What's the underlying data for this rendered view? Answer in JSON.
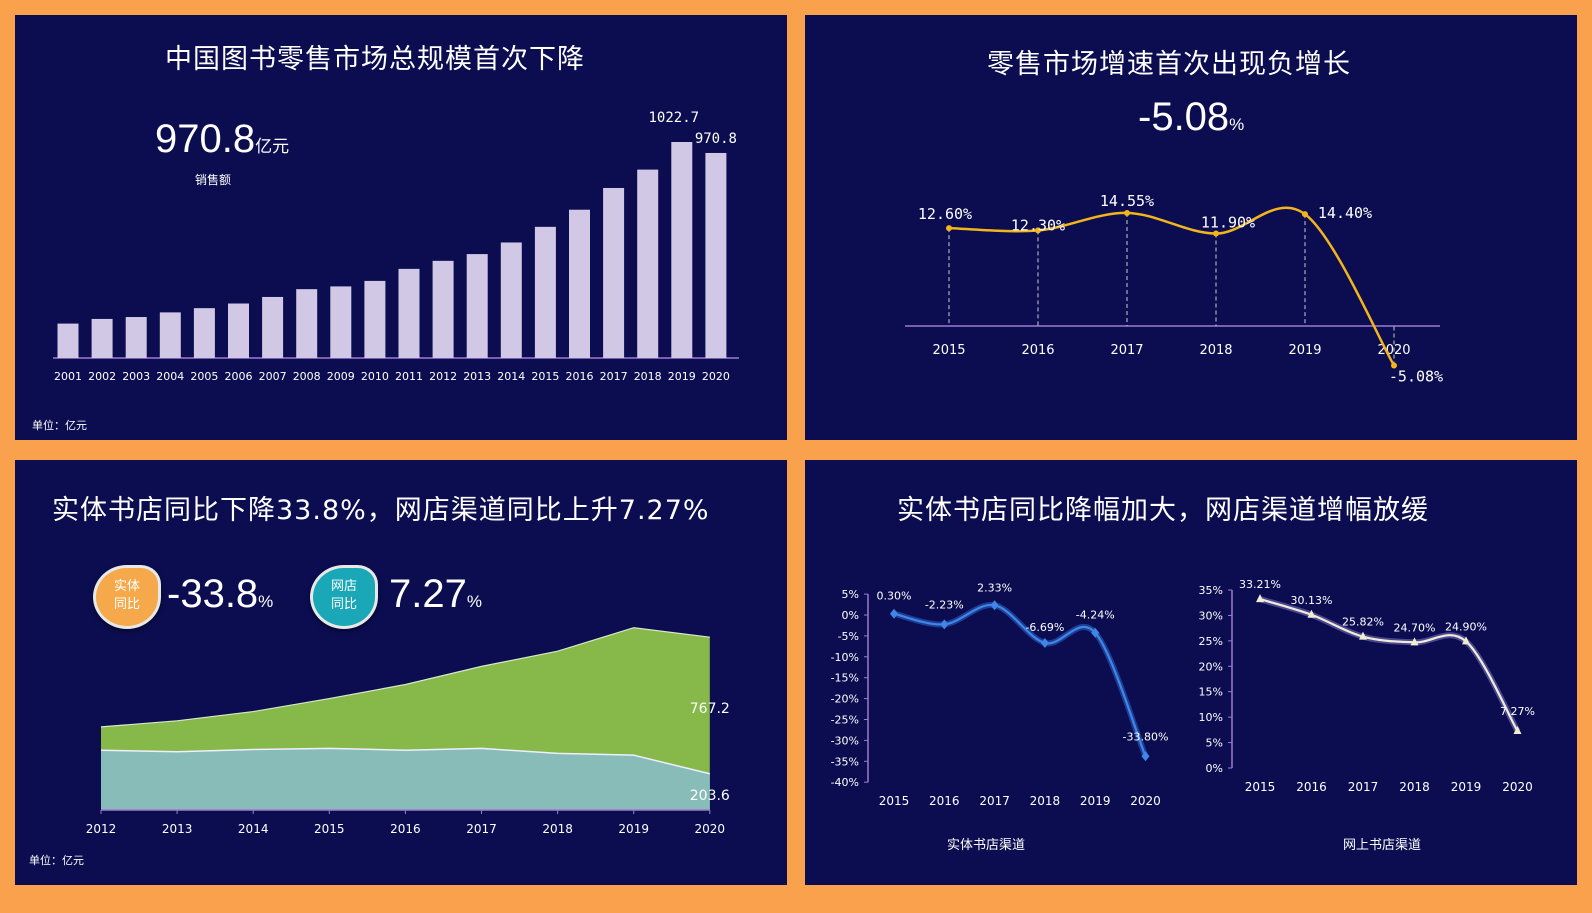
{
  "colors": {
    "frame": "#f9a14c",
    "panel": "#0b0d50",
    "bar": "#d0c8e4",
    "growth_line": "#f2b51c",
    "physical_area": "#88bcb8",
    "online_area": "#86b84a",
    "physical_line": "#3f86e8",
    "online_line": "#eeeed2",
    "axis": "#9c7bd0"
  },
  "panel1": {
    "title": "中国图书零售市场总规模首次下降",
    "headline_value": "970.8",
    "headline_unit": "亿元",
    "headline_label": "销售额",
    "unit_note": "单位：亿元",
    "chart_data": {
      "type": "bar",
      "categories": [
        "2001",
        "2002",
        "2003",
        "2004",
        "2005",
        "2006",
        "2007",
        "2008",
        "2009",
        "2010",
        "2011",
        "2012",
        "2013",
        "2014",
        "2015",
        "2016",
        "2017",
        "2018",
        "2019",
        "2020"
      ],
      "values": [
        163,
        185,
        194,
        216,
        236,
        258,
        289,
        326,
        339,
        365,
        422,
        460,
        492,
        547,
        621,
        702,
        805,
        892,
        1022.7,
        970.8
      ],
      "data_labels": {
        "2019": "1022.7",
        "2020": "970.8"
      },
      "ylim": [
        0,
        1050
      ],
      "grid": false
    }
  },
  "panel2": {
    "title": "零售市场增速首次出现负增长",
    "headline_value": "-5.08",
    "headline_unit": "%",
    "chart_data": {
      "type": "line",
      "categories": [
        "2015",
        "2016",
        "2017",
        "2018",
        "2019",
        "2020"
      ],
      "values": [
        12.6,
        12.3,
        14.55,
        11.9,
        14.4,
        -5.08
      ],
      "data_labels": [
        "12.60%",
        "12.30%",
        "14.55%",
        "11.90%",
        "14.40%",
        "-5.08%"
      ],
      "smooth": true,
      "grid": false
    }
  },
  "panel3": {
    "title": "实体书店同比下降33.8%，网店渠道同比上升7.27%",
    "badges": [
      {
        "line1": "实体",
        "line2": "同比",
        "value": "-33.8",
        "unit": "%",
        "color": "#f5a94a"
      },
      {
        "line1": "网店",
        "line2": "同比",
        "value": "7.27",
        "unit": "%",
        "color": "#1aa8b8"
      }
    ],
    "unit_note": "单位：亿元",
    "chart_data": {
      "type": "area",
      "stacked": true,
      "categories": [
        "2012",
        "2013",
        "2014",
        "2015",
        "2016",
        "2017",
        "2018",
        "2019",
        "2020"
      ],
      "series": [
        {
          "values": [
            336,
            327,
            340,
            346,
            336,
            346,
            318,
            308,
            203.6
          ]
        },
        {
          "values": [
            131,
            174,
            213,
            280,
            369,
            461,
            574,
            716,
            767.2
          ]
        }
      ],
      "data_labels": [
        "203.6",
        "767.2"
      ]
    }
  },
  "panel4": {
    "title": "实体书店同比降幅加大，网店渠道增幅放缓",
    "chart_data": [
      {
        "type": "line",
        "xlabel": "实体书店渠道",
        "categories": [
          "2015",
          "2016",
          "2017",
          "2018",
          "2019",
          "2020"
        ],
        "values": [
          0.3,
          -2.23,
          2.33,
          -6.69,
          -4.24,
          -33.8
        ],
        "data_labels": [
          "0.30%",
          "-2.23%",
          "2.33%",
          "-6.69%",
          "-4.24%",
          "-33.80%"
        ],
        "yticks": [
          "5%",
          "0%",
          "-5%",
          "-10%",
          "-15%",
          "-20%",
          "-25%",
          "-30%",
          "-35%",
          "-40%"
        ],
        "ylim": [
          -40,
          5
        ],
        "smooth": true
      },
      {
        "type": "line",
        "xlabel": "网上书店渠道",
        "categories": [
          "2015",
          "2016",
          "2017",
          "2018",
          "2019",
          "2020"
        ],
        "values": [
          33.21,
          30.13,
          25.82,
          24.7,
          24.9,
          7.27
        ],
        "data_labels": [
          "33.21%",
          "30.13%",
          "25.82%",
          "24.70%",
          "24.90%",
          "7.27%"
        ],
        "yticks": [
          "35%",
          "30%",
          "25%",
          "20%",
          "15%",
          "10%",
          "5%",
          "0%"
        ],
        "ylim": [
          0,
          35
        ],
        "smooth": true
      }
    ]
  }
}
